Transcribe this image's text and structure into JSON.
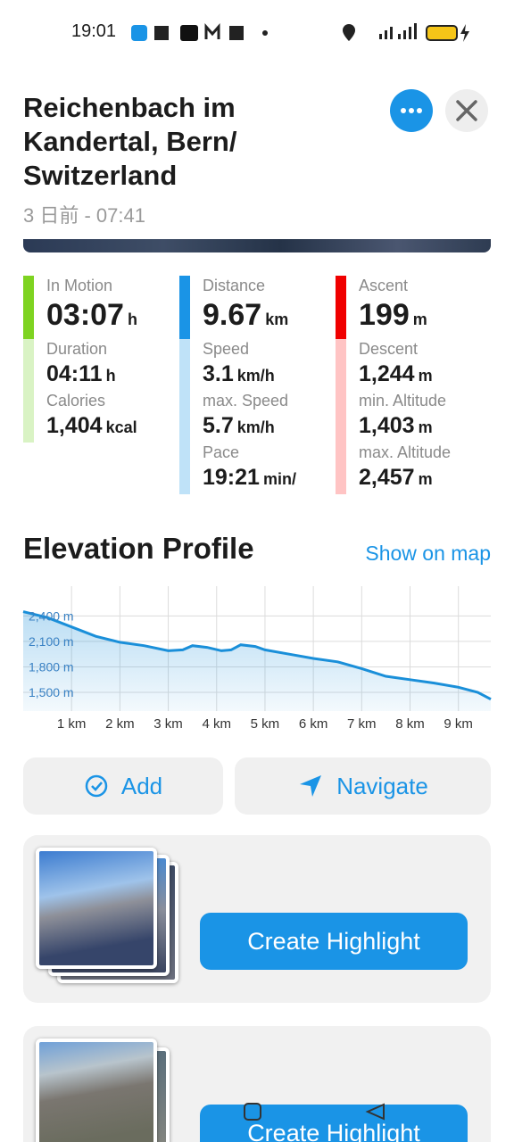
{
  "status_bar": {
    "time": "19:01"
  },
  "header": {
    "title": "Reichenbach im Kandertal, Bern/ Switzerland",
    "subtitle": "3 日前 - 07:41"
  },
  "stats": [
    {
      "color": "#7ed321",
      "light_color": "#d9f3c4",
      "items": [
        {
          "label": "In Motion",
          "value": "03:07",
          "unit": "h"
        },
        {
          "label": "Duration",
          "value": "04:11",
          "unit": "h"
        },
        {
          "label": "Calories",
          "value": "1,404",
          "unit": "kcal"
        }
      ]
    },
    {
      "color": "#1a94e6",
      "light_color": "#bfe2f8",
      "items": [
        {
          "label": "Distance",
          "value": "9.67",
          "unit": "km"
        },
        {
          "label": "Speed",
          "value": "3.1",
          "unit": "km/h"
        },
        {
          "label": "max. Speed",
          "value": "5.7",
          "unit": "km/h"
        },
        {
          "label": "Pace",
          "value": "19:21",
          "unit": "min/"
        }
      ]
    },
    {
      "color": "#f00000",
      "light_color": "#ffc4c4",
      "items": [
        {
          "label": "Ascent",
          "value": "199",
          "unit": "m"
        },
        {
          "label": "Descent",
          "value": "1,244",
          "unit": "m"
        },
        {
          "label": "min. Altitude",
          "value": "1,403",
          "unit": "m"
        },
        {
          "label": "max. Altitude",
          "value": "2,457",
          "unit": "m"
        }
      ]
    }
  ],
  "chart_data": {
    "type": "area",
    "title": "Elevation Profile",
    "x": [
      0,
      0.5,
      1,
      1.5,
      2,
      2.5,
      3,
      3.3,
      3.5,
      3.8,
      4.1,
      4.3,
      4.5,
      4.8,
      5,
      5.5,
      6,
      6.5,
      7,
      7.5,
      8,
      8.5,
      9,
      9.4,
      9.67
    ],
    "values": [
      2450,
      2380,
      2270,
      2160,
      2090,
      2050,
      1990,
      2000,
      2050,
      2030,
      1990,
      2000,
      2060,
      2040,
      2000,
      1950,
      1900,
      1860,
      1780,
      1690,
      1650,
      1610,
      1560,
      1500,
      1420
    ],
    "color": "#1a8fd9",
    "xlim": [
      0,
      9.67
    ],
    "ylim": [
      1280,
      2750
    ],
    "xticks": [
      {
        "value": 1,
        "label": "1 km"
      },
      {
        "value": 2,
        "label": "2 km"
      },
      {
        "value": 3,
        "label": "3 km"
      },
      {
        "value": 4,
        "label": "4 km"
      },
      {
        "value": 5,
        "label": "5 km"
      },
      {
        "value": 6,
        "label": "6 km"
      },
      {
        "value": 7,
        "label": "7 km"
      },
      {
        "value": 8,
        "label": "8 km"
      },
      {
        "value": 9,
        "label": "9 km"
      }
    ],
    "yticks": [
      {
        "value": 1500,
        "label": "1,500 m"
      },
      {
        "value": 1800,
        "label": "1,800 m"
      },
      {
        "value": 2100,
        "label": "2,100 m"
      },
      {
        "value": 2400,
        "label": "2,400 m"
      }
    ],
    "grid": true
  },
  "elevation_link": "Show on map",
  "actions": {
    "add": "Add",
    "navigate": "Navigate"
  },
  "highlights": [
    {
      "button": "Create Highlight"
    },
    {
      "button": "Create Highlight"
    }
  ]
}
